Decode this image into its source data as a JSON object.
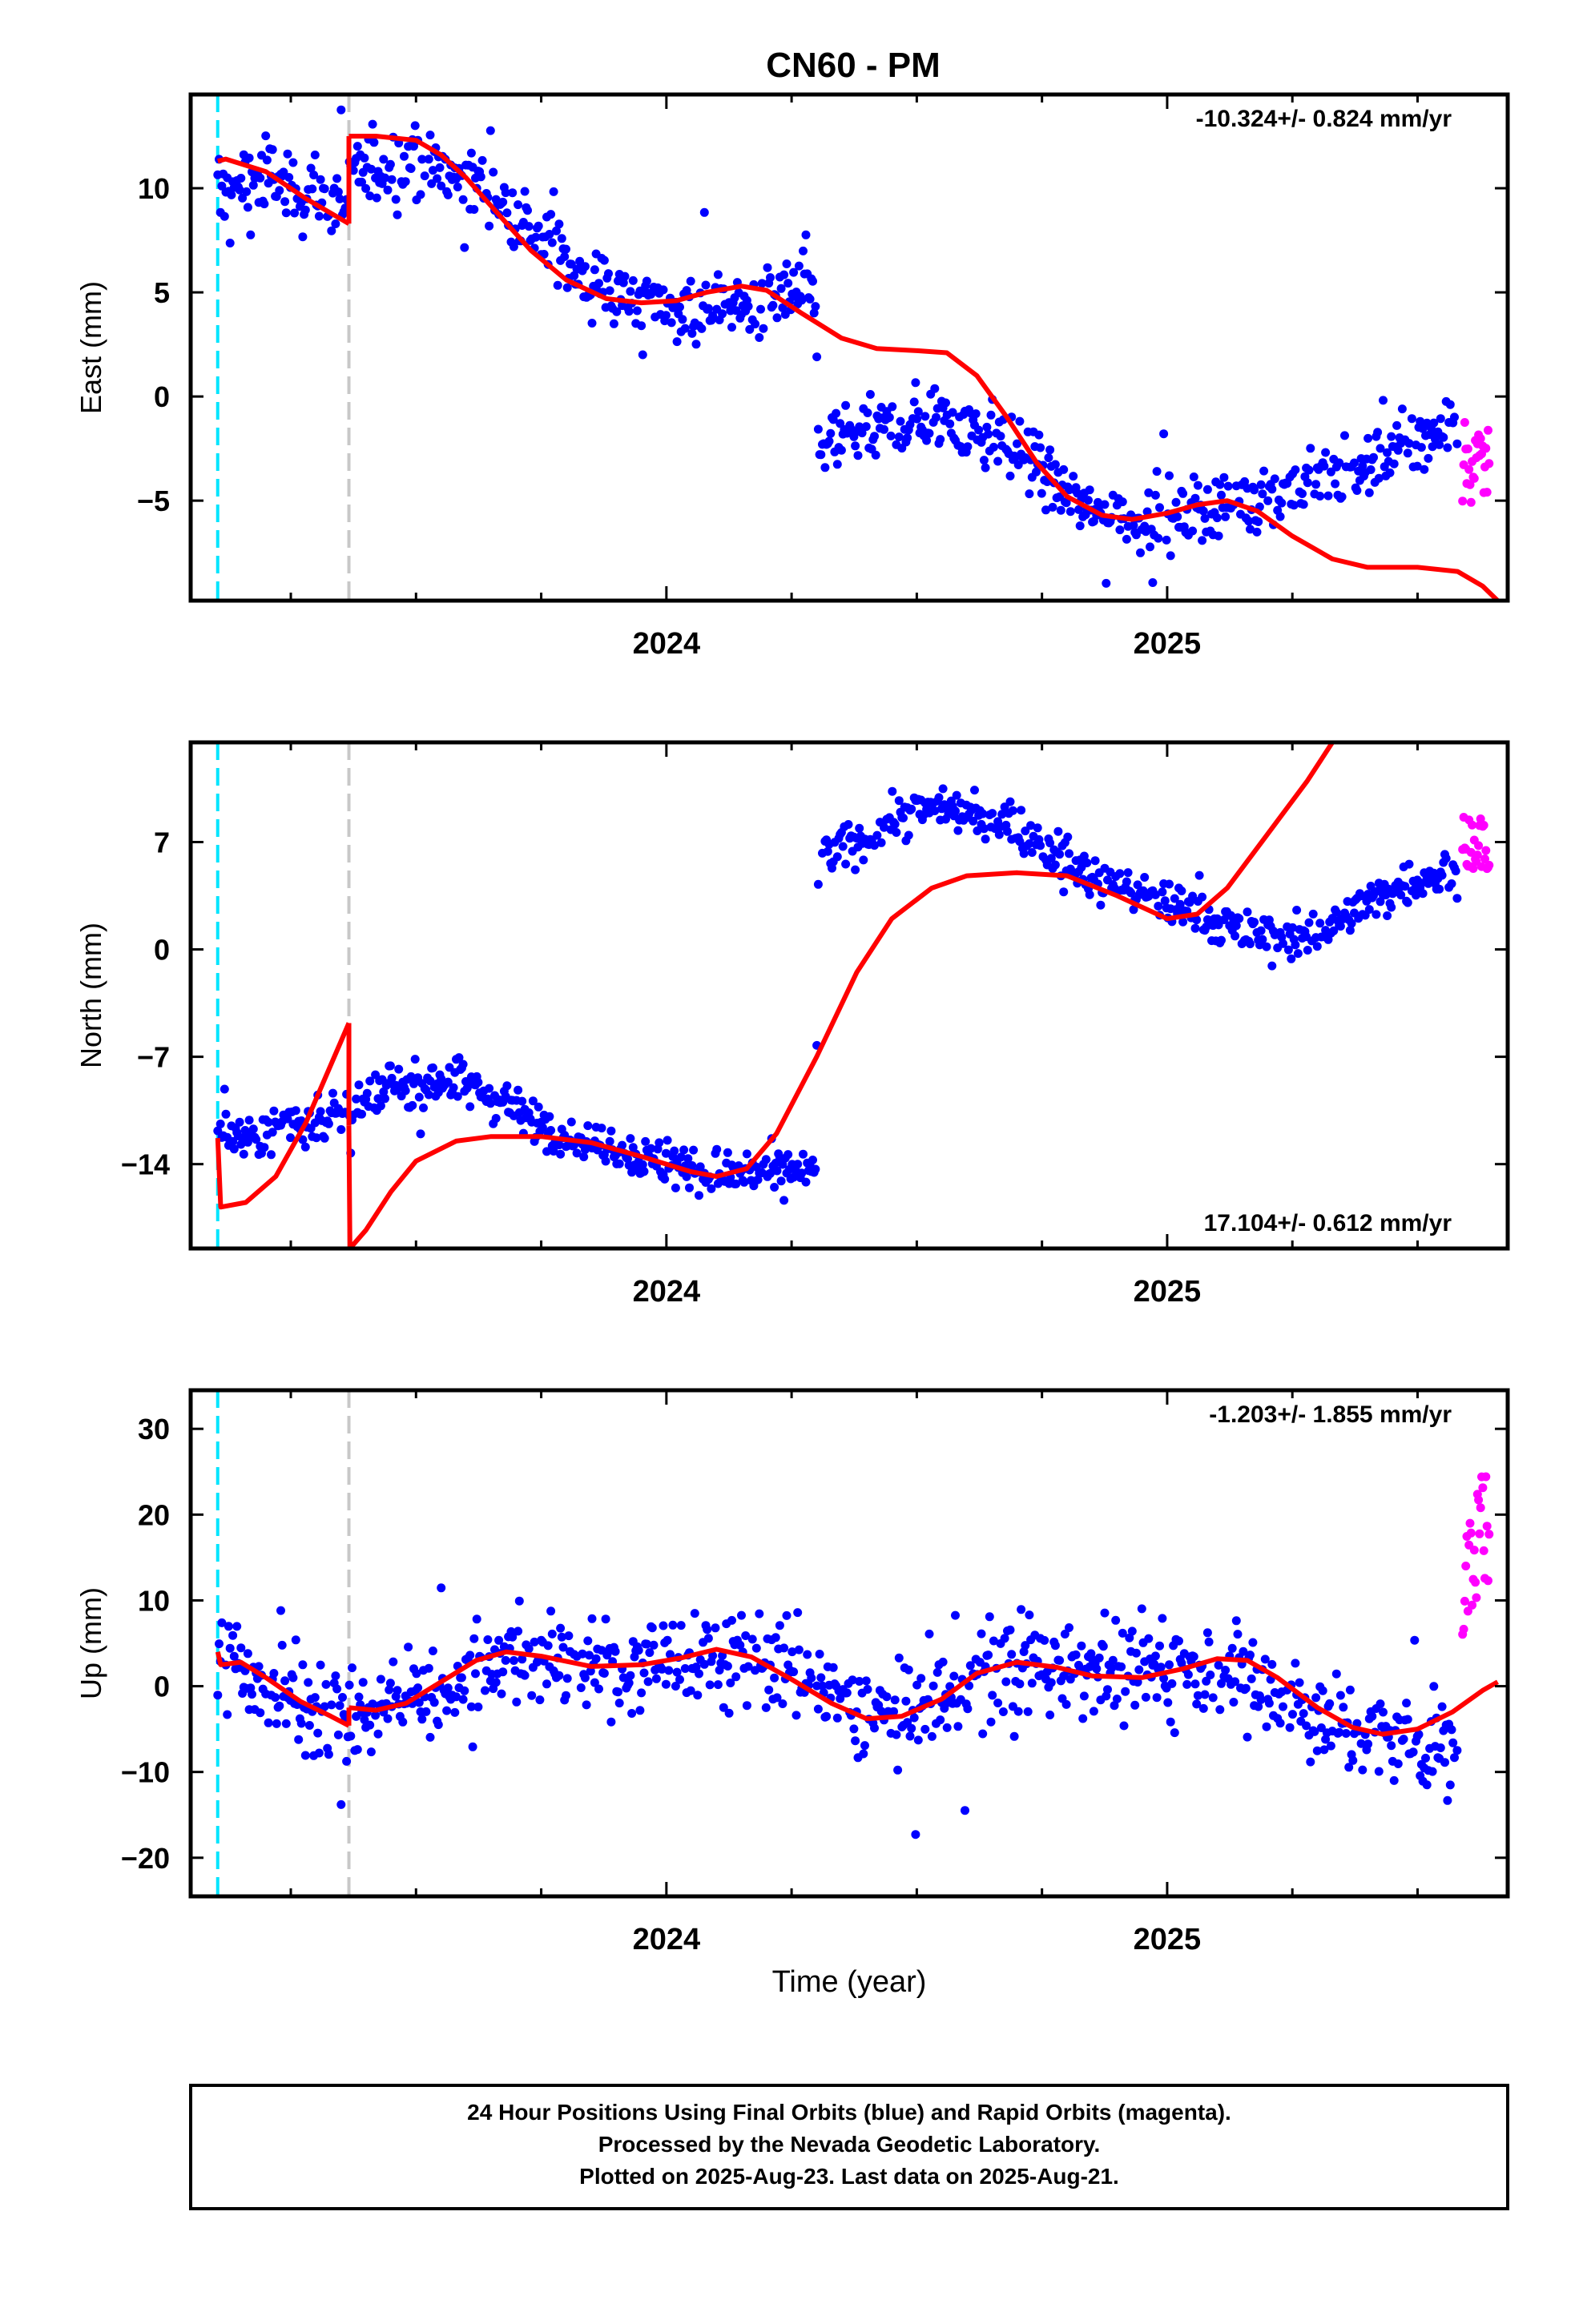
{
  "page": {
    "title": "CN60 - PM",
    "x_axis_label": "Time (year)",
    "footer_lines": [
      "24 Hour Positions Using Final Orbits (blue) and Rapid Orbits (magenta).",
      "Processed by the Nevada Geodetic Laboratory.",
      "Plotted on 2025-Aug-23. Last data on 2025-Aug-21."
    ]
  },
  "colors": {
    "final_orbits": "#0000ff",
    "rapid_orbits": "#ff00ff",
    "model_fit": "#ff0000",
    "equipment_change_line": "#00e5ff",
    "break_line": "#c8c8c8"
  },
  "chart_data": [
    {
      "type": "scatter",
      "component": "east",
      "ylabel": "East (mm)",
      "rate_text": "-10.324+/- 0.824 mm/yr",
      "xlim": [
        2023.05,
        2025.68
      ],
      "ylim": [
        -9.8,
        14.5
      ],
      "xticks": [
        2024,
        2025
      ],
      "yticks": [
        -5,
        0,
        5,
        10
      ],
      "vlines": {
        "cyan": 2023.104,
        "gray": 2023.366,
        "rapid_start": 2025.58
      },
      "anchors": [
        [
          2023.1,
          9.8
        ],
        [
          2023.2,
          10.6
        ],
        [
          2023.36,
          9.2
        ],
        [
          2023.38,
          10.6
        ],
        [
          2023.45,
          11.2
        ],
        [
          2023.55,
          10.9
        ],
        [
          2023.65,
          9.8
        ],
        [
          2023.75,
          7.5
        ],
        [
          2023.85,
          5.5
        ],
        [
          2023.95,
          4.5
        ],
        [
          2024.05,
          4.2
        ],
        [
          2024.15,
          4.2
        ],
        [
          2024.25,
          5.0
        ],
        [
          2024.3,
          5.2
        ],
        [
          2024.301,
          -2.5
        ],
        [
          2024.35,
          -1.8
        ],
        [
          2024.45,
          -1.5
        ],
        [
          2024.55,
          -1.0
        ],
        [
          2024.65,
          -1.8
        ],
        [
          2024.75,
          -3.5
        ],
        [
          2024.85,
          -5.5
        ],
        [
          2024.95,
          -6.0
        ],
        [
          2025.05,
          -5.5
        ],
        [
          2025.15,
          -4.8
        ],
        [
          2025.25,
          -4.5
        ],
        [
          2025.35,
          -3.8
        ],
        [
          2025.45,
          -2.8
        ],
        [
          2025.55,
          -1.6
        ],
        [
          2025.58,
          -1.0
        ]
      ],
      "noise": 1.3,
      "rapid_mean": -3.2,
      "rapid_spread": 4.0,
      "segments": [
        [
          [
            2023.104,
            11.3
          ],
          [
            2023.12,
            11.4
          ],
          [
            2023.2,
            10.8
          ],
          [
            2023.28,
            9.5
          ],
          [
            2023.366,
            8.3
          ]
        ],
        [
          [
            2023.366,
            12.5
          ],
          [
            2023.42,
            12.5
          ],
          [
            2023.5,
            12.3
          ],
          [
            2023.55,
            11.6
          ],
          [
            2023.6,
            10.5
          ],
          [
            2023.67,
            8.6
          ],
          [
            2023.73,
            7.0
          ],
          [
            2023.8,
            5.6
          ],
          [
            2023.88,
            4.7
          ],
          [
            2023.95,
            4.5
          ],
          [
            2024.02,
            4.6
          ],
          [
            2024.08,
            5.0
          ],
          [
            2024.15,
            5.3
          ],
          [
            2024.2,
            5.1
          ],
          [
            2024.27,
            4.0
          ],
          [
            2024.35,
            2.8
          ],
          [
            2024.42,
            2.3
          ],
          [
            2024.5,
            2.2
          ],
          [
            2024.56,
            2.1
          ],
          [
            2024.62,
            1.0
          ],
          [
            2024.68,
            -1.0
          ],
          [
            2024.74,
            -3.2
          ],
          [
            2024.8,
            -4.8
          ],
          [
            2024.87,
            -5.7
          ],
          [
            2024.93,
            -5.9
          ],
          [
            2025.0,
            -5.6
          ],
          [
            2025.06,
            -5.2
          ],
          [
            2025.12,
            -5.0
          ],
          [
            2025.18,
            -5.5
          ],
          [
            2025.25,
            -6.7
          ],
          [
            2025.33,
            -7.8
          ],
          [
            2025.4,
            -8.2
          ],
          [
            2025.5,
            -8.2
          ],
          [
            2025.58,
            -8.4
          ],
          [
            2025.63,
            -9.1
          ],
          [
            2025.66,
            -9.8
          ]
        ]
      ]
    },
    {
      "type": "scatter",
      "component": "north",
      "ylabel": "North (mm)",
      "rate_text": "17.104+/- 0.612 mm/yr",
      "xlim": [
        2023.05,
        2025.68
      ],
      "ylim": [
        -19.5,
        13.5
      ],
      "xticks": [
        2024,
        2025
      ],
      "yticks": [
        -14,
        -7,
        0,
        7
      ],
      "vlines": {
        "cyan": 2023.104,
        "gray": 2023.366,
        "rapid_start": 2025.58
      },
      "anchors": [
        [
          2023.1,
          -12.0
        ],
        [
          2023.2,
          -12.0
        ],
        [
          2023.36,
          -10.5
        ],
        [
          2023.4,
          -10.0
        ],
        [
          2023.45,
          -9.0
        ],
        [
          2023.55,
          -8.5
        ],
        [
          2023.65,
          -9.5
        ],
        [
          2023.75,
          -11.5
        ],
        [
          2023.85,
          -12.5
        ],
        [
          2023.95,
          -13.5
        ],
        [
          2024.05,
          -14.5
        ],
        [
          2024.15,
          -14.5
        ],
        [
          2024.25,
          -14.5
        ],
        [
          2024.3,
          -14.5
        ],
        [
          2024.301,
          5.5
        ],
        [
          2024.35,
          6.5
        ],
        [
          2024.45,
          8.5
        ],
        [
          2024.55,
          9.5
        ],
        [
          2024.65,
          8.5
        ],
        [
          2024.75,
          7.0
        ],
        [
          2024.85,
          4.5
        ],
        [
          2024.95,
          3.5
        ],
        [
          2025.05,
          2.5
        ],
        [
          2025.15,
          1.0
        ],
        [
          2025.25,
          0.5
        ],
        [
          2025.35,
          2.0
        ],
        [
          2025.45,
          4.0
        ],
        [
          2025.55,
          5.0
        ],
        [
          2025.58,
          5.0
        ]
      ],
      "noise": 1.2,
      "rapid_mean": 7.0,
      "rapid_spread": 3.5,
      "segments": [
        [
          [
            2023.104,
            -12.3
          ],
          [
            2023.11,
            -16.8
          ],
          [
            2023.16,
            -16.5
          ],
          [
            2023.22,
            -14.8
          ],
          [
            2023.28,
            -11.3
          ],
          [
            2023.366,
            -4.8
          ]
        ],
        [
          [
            2023.366,
            -11.5
          ],
          [
            2023.368,
            -19.5
          ],
          [
            2023.4,
            -18.3
          ],
          [
            2023.45,
            -15.8
          ],
          [
            2023.5,
            -13.8
          ],
          [
            2023.58,
            -12.5
          ],
          [
            2023.65,
            -12.2
          ],
          [
            2023.75,
            -12.2
          ],
          [
            2023.85,
            -12.6
          ],
          [
            2023.95,
            -13.5
          ],
          [
            2024.05,
            -14.5
          ],
          [
            2024.1,
            -14.8
          ],
          [
            2024.16,
            -14.3
          ],
          [
            2024.22,
            -12.0
          ],
          [
            2024.3,
            -7.0
          ],
          [
            2024.38,
            -1.5
          ],
          [
            2024.45,
            2.0
          ],
          [
            2024.53,
            4.0
          ],
          [
            2024.6,
            4.8
          ],
          [
            2024.7,
            5.0
          ],
          [
            2024.8,
            4.8
          ],
          [
            2024.9,
            3.5
          ],
          [
            2025.0,
            2.0
          ],
          [
            2025.06,
            2.3
          ],
          [
            2025.12,
            4.0
          ],
          [
            2025.2,
            7.5
          ],
          [
            2025.28,
            11.0
          ],
          [
            2025.33,
            13.5
          ]
        ]
      ]
    },
    {
      "type": "scatter",
      "component": "up",
      "ylabel": "Up (mm)",
      "rate_text": "-1.203+/- 1.855 mm/yr",
      "xlim": [
        2023.05,
        2025.68
      ],
      "ylim": [
        -24.5,
        34.5
      ],
      "xticks": [
        2024,
        2025
      ],
      "yticks": [
        -20,
        -10,
        0,
        10,
        20,
        30
      ],
      "vlines": {
        "cyan": 2023.104,
        "gray": 2023.366,
        "rapid_start": 2025.58
      },
      "anchors": [
        [
          2023.1,
          3.0
        ],
        [
          2023.2,
          0.0
        ],
        [
          2023.3,
          -3.0
        ],
        [
          2023.366,
          -4.0
        ],
        [
          2023.45,
          -2.0
        ],
        [
          2023.55,
          0.5
        ],
        [
          2023.65,
          3.5
        ],
        [
          2023.75,
          3.0
        ],
        [
          2023.85,
          2.0
        ],
        [
          2023.95,
          2.5
        ],
        [
          2024.05,
          3.5
        ],
        [
          2024.15,
          3.5
        ],
        [
          2024.25,
          1.5
        ],
        [
          2024.35,
          -2.0
        ],
        [
          2024.45,
          -3.5
        ],
        [
          2024.55,
          -2.0
        ],
        [
          2024.65,
          2.0
        ],
        [
          2024.75,
          3.0
        ],
        [
          2024.85,
          2.5
        ],
        [
          2024.95,
          1.5
        ],
        [
          2025.05,
          2.5
        ],
        [
          2025.15,
          2.0
        ],
        [
          2025.25,
          -2.0
        ],
        [
          2025.35,
          -5.0
        ],
        [
          2025.45,
          -6.0
        ],
        [
          2025.55,
          -7.0
        ],
        [
          2025.58,
          -6.5
        ]
      ],
      "noise": 4.8,
      "rapid_mean": 15.0,
      "rapid_spread": 20.0,
      "segments": [
        [
          [
            2023.104,
            4.0
          ],
          [
            2023.11,
            2.5
          ],
          [
            2023.15,
            2.8
          ],
          [
            2023.2,
            1.0
          ],
          [
            2023.27,
            -1.8
          ],
          [
            2023.33,
            -3.5
          ],
          [
            2023.366,
            -4.6
          ]
        ],
        [
          [
            2023.366,
            -2.5
          ],
          [
            2023.42,
            -2.8
          ],
          [
            2023.48,
            -2.0
          ],
          [
            2023.55,
            0.5
          ],
          [
            2023.62,
            3.0
          ],
          [
            2023.68,
            4.0
          ],
          [
            2023.75,
            3.5
          ],
          [
            2023.85,
            2.3
          ],
          [
            2023.95,
            2.5
          ],
          [
            2024.03,
            3.3
          ],
          [
            2024.1,
            4.3
          ],
          [
            2024.17,
            3.4
          ],
          [
            2024.25,
            0.8
          ],
          [
            2024.33,
            -2.0
          ],
          [
            2024.4,
            -3.8
          ],
          [
            2024.47,
            -3.5
          ],
          [
            2024.55,
            -1.5
          ],
          [
            2024.62,
            1.5
          ],
          [
            2024.7,
            2.8
          ],
          [
            2024.78,
            2.2
          ],
          [
            2024.85,
            1.2
          ],
          [
            2024.95,
            1.0
          ],
          [
            2025.03,
            2.0
          ],
          [
            2025.1,
            3.2
          ],
          [
            2025.16,
            3.0
          ],
          [
            2025.22,
            1.0
          ],
          [
            2025.3,
            -2.5
          ],
          [
            2025.37,
            -4.8
          ],
          [
            2025.43,
            -5.6
          ],
          [
            2025.5,
            -5.0
          ],
          [
            2025.57,
            -3.0
          ],
          [
            2025.63,
            -0.5
          ],
          [
            2025.66,
            0.5
          ]
        ]
      ]
    }
  ]
}
